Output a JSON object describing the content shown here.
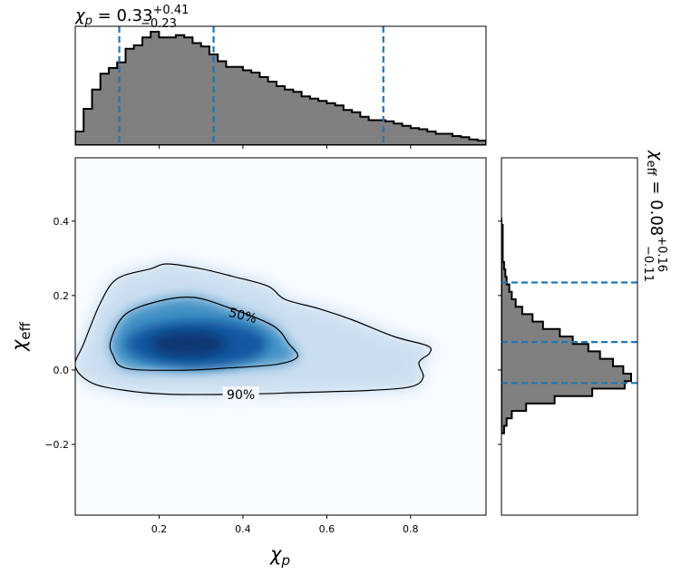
{
  "chart_data": {
    "type": "corner",
    "joint": {
      "type": "heatmap",
      "xlabel_main": "χ",
      "xlabel_sub": "p",
      "ylabel_main": "χ",
      "ylabel_sub": "eff",
      "xlim": [
        0.0,
        0.98
      ],
      "ylim": [
        -0.39,
        0.57
      ],
      "x_ticks": [
        0.2,
        0.4,
        0.6,
        0.8
      ],
      "x_tick_labels": [
        "0.2",
        "0.4",
        "0.6",
        "0.8"
      ],
      "y_ticks": [
        -0.2,
        0.0,
        0.2,
        0.4
      ],
      "y_tick_labels": [
        "−0.2",
        "0.0",
        "0.2",
        "0.4"
      ],
      "colormap": "Blues",
      "density_peak": {
        "x": 0.27,
        "y": 0.07
      },
      "contours": [
        {
          "label": "50%",
          "label_pos": [
            0.4,
            0.147
          ],
          "points": [
            [
              0.09,
              0.04
            ],
            [
              0.085,
              0.08
            ],
            [
              0.12,
              0.15
            ],
            [
              0.2,
              0.185
            ],
            [
              0.28,
              0.195
            ],
            [
              0.36,
              0.17
            ],
            [
              0.47,
              0.12
            ],
            [
              0.51,
              0.07
            ],
            [
              0.53,
              0.035
            ],
            [
              0.48,
              0.015
            ],
            [
              0.36,
              0.005
            ],
            [
              0.24,
              -0.001
            ],
            [
              0.12,
              0.005
            ],
            [
              0.09,
              0.04
            ]
          ]
        },
        {
          "label": "90%",
          "label_pos": [
            0.395,
            -0.066
          ],
          "points": [
            [
              0.0,
              0.01
            ],
            [
              0.02,
              0.07
            ],
            [
              0.06,
              0.18
            ],
            [
              0.1,
              0.245
            ],
            [
              0.18,
              0.272
            ],
            [
              0.22,
              0.285
            ],
            [
              0.3,
              0.272
            ],
            [
              0.38,
              0.25
            ],
            [
              0.46,
              0.225
            ],
            [
              0.5,
              0.19
            ],
            [
              0.58,
              0.165
            ],
            [
              0.66,
              0.135
            ],
            [
              0.76,
              0.09
            ],
            [
              0.84,
              0.065
            ],
            [
              0.845,
              0.045
            ],
            [
              0.82,
              0.02
            ],
            [
              0.83,
              -0.02
            ],
            [
              0.8,
              -0.045
            ],
            [
              0.7,
              -0.055
            ],
            [
              0.55,
              -0.06
            ],
            [
              0.4,
              -0.065
            ],
            [
              0.22,
              -0.065
            ],
            [
              0.12,
              -0.055
            ],
            [
              0.04,
              -0.035
            ],
            [
              0.0,
              0.01
            ]
          ]
        }
      ]
    },
    "marginal_x": {
      "type": "step-histogram",
      "title_main": "χ",
      "title_sub": "p",
      "title_value": " = 0.33",
      "title_sup": "+0.41",
      "title_subscript": "−0.23",
      "bin_start": 0.0,
      "bin_width": 0.02,
      "counts": [
        0.12,
        0.32,
        0.49,
        0.63,
        0.68,
        0.73,
        0.85,
        0.88,
        0.95,
        1.0,
        0.95,
        0.95,
        0.97,
        0.95,
        0.9,
        0.87,
        0.8,
        0.74,
        0.69,
        0.69,
        0.66,
        0.64,
        0.6,
        0.56,
        0.52,
        0.49,
        0.47,
        0.43,
        0.41,
        0.39,
        0.37,
        0.35,
        0.31,
        0.29,
        0.25,
        0.22,
        0.22,
        0.21,
        0.19,
        0.17,
        0.15,
        0.14,
        0.12,
        0.1,
        0.1,
        0.08,
        0.07,
        0.05,
        0.04
      ],
      "quantile_lines": [
        0.105,
        0.33,
        0.735
      ],
      "line_color": "#1f77b4"
    },
    "marginal_y": {
      "type": "step-histogram",
      "orientation": "horizontal",
      "title_main": "χ",
      "title_sub": "eff",
      "title_value": " = 0.08",
      "title_sup": "+0.16",
      "title_subscript": "−0.11",
      "bin_start": -0.17,
      "bin_width": 0.02,
      "counts": [
        0.02,
        0.04,
        0.08,
        0.19,
        0.41,
        0.7,
        0.95,
        1.0,
        0.94,
        0.86,
        0.76,
        0.67,
        0.55,
        0.45,
        0.32,
        0.24,
        0.16,
        0.11,
        0.08,
        0.06,
        0.04,
        0.03,
        0.02,
        0.01,
        0.01,
        0.01,
        0.01,
        0.01,
        0.0
      ],
      "quantile_lines": [
        -0.035,
        0.075,
        0.235
      ],
      "line_color": "#1f77b4"
    }
  }
}
